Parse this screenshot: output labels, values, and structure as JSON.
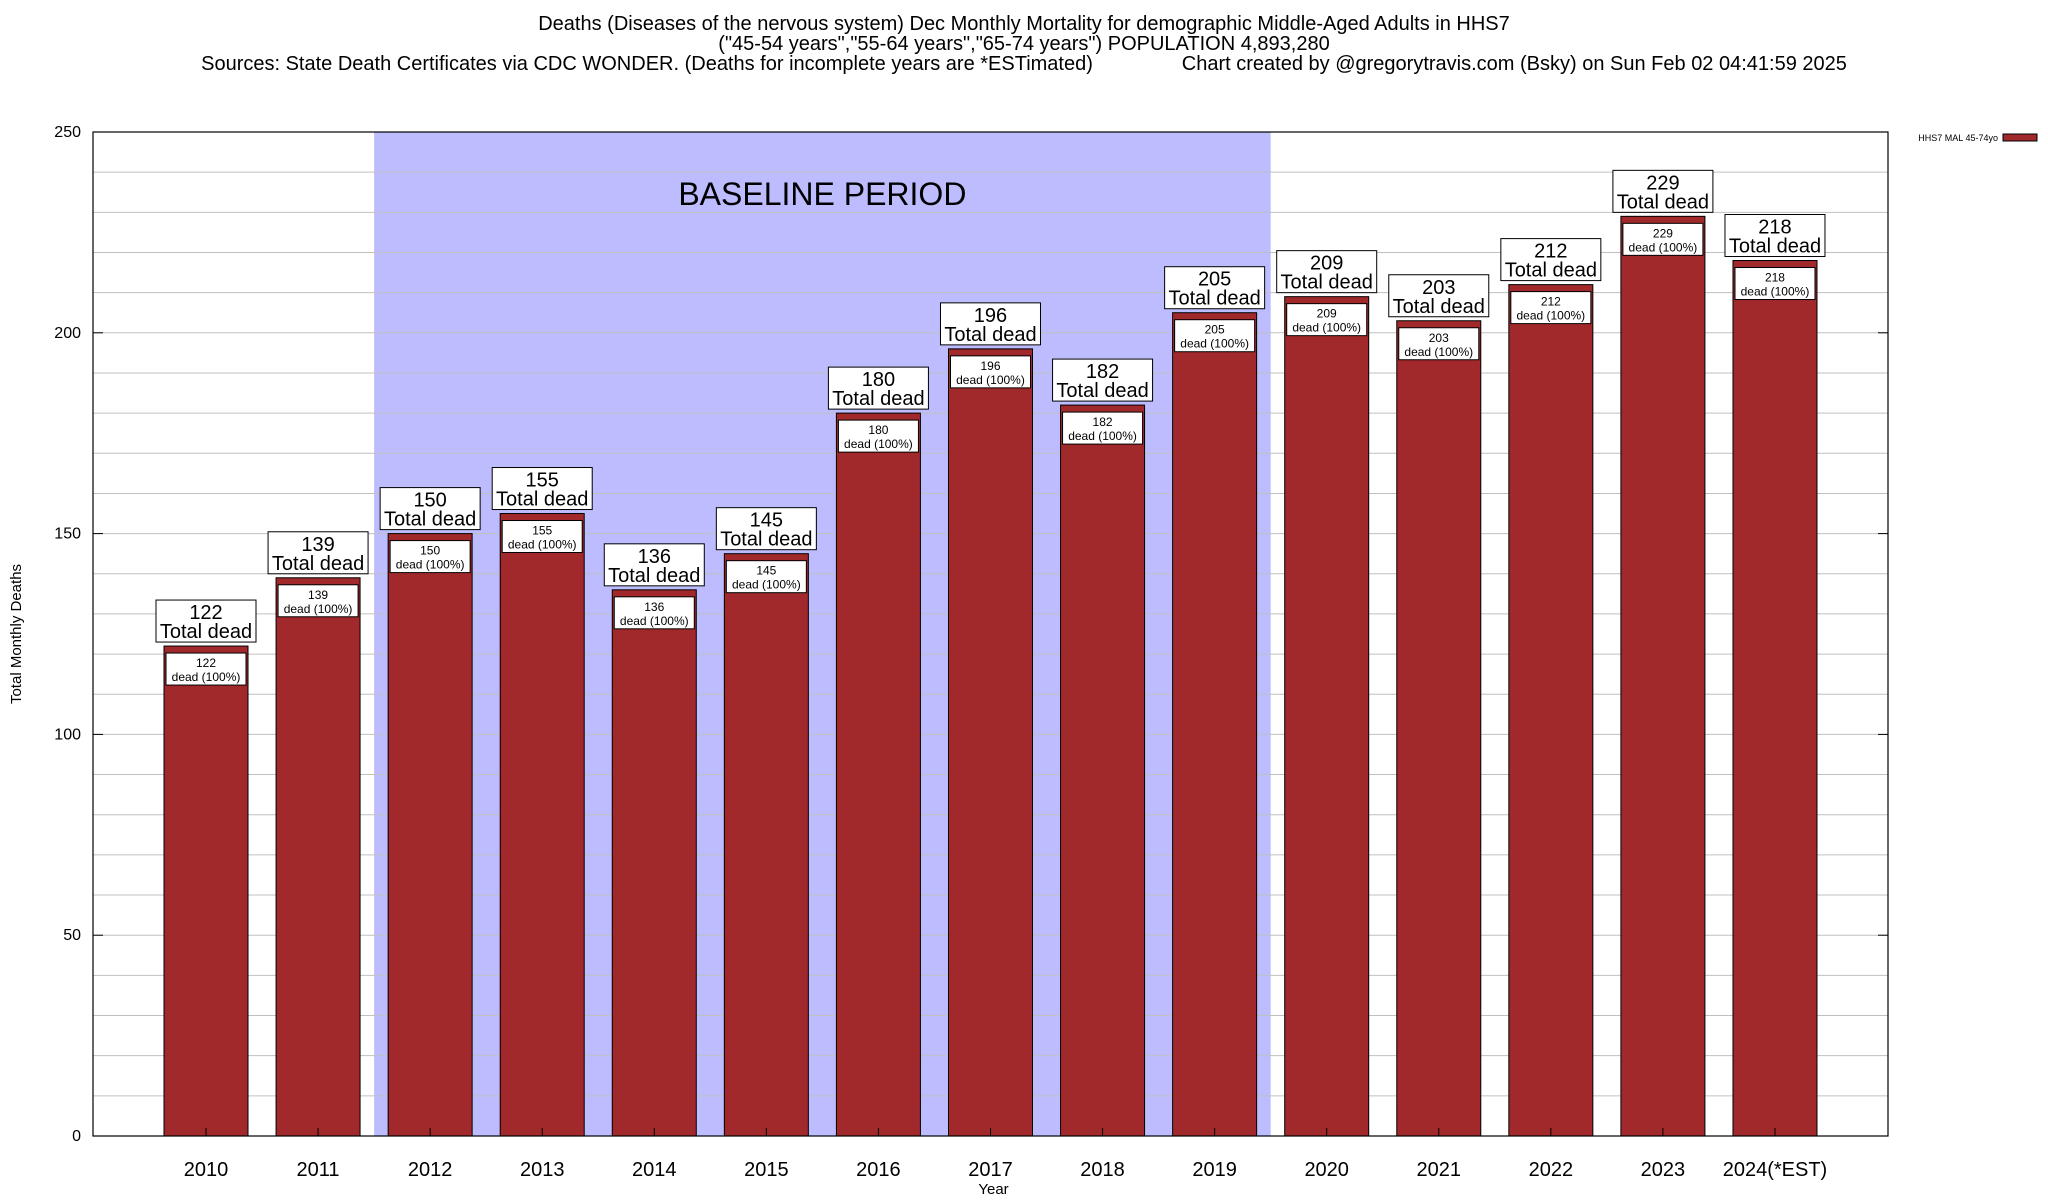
{
  "header": {
    "line1": "Deaths (Diseases of the nervous system) Dec Monthly Mortality for demographic Middle-Aged Adults in HHS7",
    "line2": "(\"45-54 years\",\"55-64 years\",\"65-74 years\") POPULATION 4,893,280",
    "line3": "Sources: State Death Certificates via CDC WONDER. (Deaths for incomplete years are *ESTimated)                Chart created by @gregorytravis.com (Bsky) on Sun Feb 02 04:41:59 2025"
  },
  "chart_data": {
    "type": "bar",
    "xlabel": "Year",
    "ylabel": "Total Monthly Deaths",
    "ylim": [
      0,
      250
    ],
    "yticks": [
      0,
      50,
      100,
      150,
      200,
      250
    ],
    "minor_grid_step": 10,
    "grid": true,
    "legend": {
      "label": "HHS7 MAL 45-74yo",
      "placement": "top-right-outside"
    },
    "categories": [
      "2010",
      "2011",
      "2012",
      "2013",
      "2014",
      "2015",
      "2016",
      "2017",
      "2018",
      "2019",
      "2020",
      "2021",
      "2022",
      "2023",
      "2024(*EST)"
    ],
    "series": [
      {
        "name": "HHS7 MAL 45-74yo",
        "values": [
          122,
          139,
          150,
          155,
          136,
          145,
          180,
          196,
          182,
          205,
          209,
          203,
          212,
          229,
          218
        ]
      }
    ],
    "annotations": {
      "baseline_label": "BASELINE PERIOD",
      "baseline_from": "2012",
      "baseline_to": "2019",
      "total_suffix": "Total dead",
      "inner_suffix": "dead (100%)"
    }
  },
  "colors": {
    "bar": "#a2292b",
    "bar_edge": "#000000",
    "baseline_band": "#bcbcff",
    "grid": "#c0c0c0"
  }
}
